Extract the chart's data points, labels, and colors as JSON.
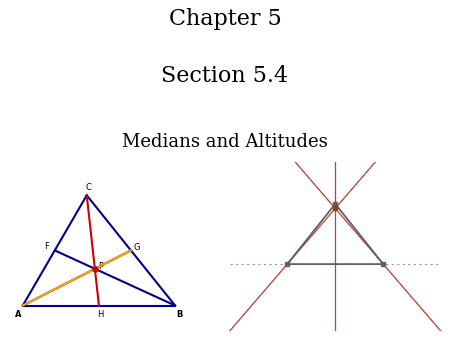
{
  "title_line1": "Chapter 5",
  "title_line2": "Section 5.4",
  "subtitle": "Medians and Altitudes",
  "title_fontsize": 16,
  "subtitle_fontsize": 13,
  "bg_color": "#ffffff",
  "left_triangle": {
    "A": [
      0.0,
      0.0
    ],
    "B": [
      1.0,
      0.0
    ],
    "C": [
      0.42,
      0.6
    ],
    "triangle_color": "#00008B",
    "median_red": "#CC0000",
    "median_orange": "#FFA500",
    "median_blue": "#00008B",
    "centroid_color": "#CC0000",
    "label_fs": 6
  },
  "right_triangle": {
    "A": [
      0.0,
      0.0
    ],
    "B": [
      1.0,
      0.0
    ],
    "C": [
      0.5,
      0.52
    ],
    "triangle_color": "#606060",
    "altitude_color": "#C04040",
    "dashed_color": "#BBBBBB",
    "ortho_color": "#8B4513",
    "ext": 1.4
  }
}
